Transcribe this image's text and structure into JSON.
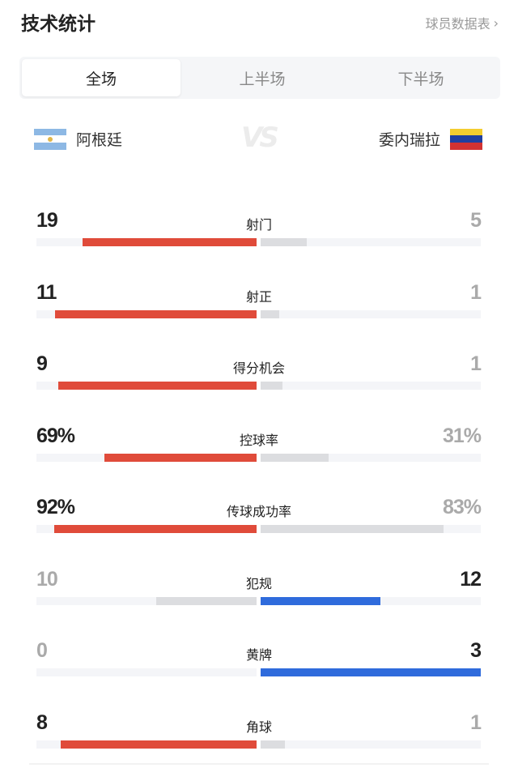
{
  "header": {
    "title": "技术统计",
    "player_link": "球员数据表",
    "chevron_icon": "chevron-right-icon"
  },
  "tabs": [
    {
      "label": "全场",
      "active": true
    },
    {
      "label": "上半场",
      "active": false
    },
    {
      "label": "下半场",
      "active": false
    }
  ],
  "teams": {
    "home": {
      "name": "阿根廷",
      "flag": "argentina-flag",
      "color": "#e04b3a"
    },
    "away": {
      "name": "委内瑞拉",
      "flag": "venezuela-flag",
      "color": "#2f6bdc"
    },
    "vs": "VS"
  },
  "colors": {
    "home_bar": "#e04b3a",
    "away_bar": "#2f6bdc",
    "lose_bar": "#dcdde0",
    "track": "#f4f5f8"
  },
  "stats": [
    {
      "label": "射门",
      "home": "19",
      "away": "5",
      "home_fill": 0.79,
      "away_fill": 0.21,
      "winner": "home"
    },
    {
      "label": "射正",
      "home": "11",
      "away": "1",
      "home_fill": 0.917,
      "away_fill": 0.083,
      "winner": "home"
    },
    {
      "label": "得分机会",
      "home": "9",
      "away": "1",
      "home_fill": 0.9,
      "away_fill": 0.1,
      "winner": "home"
    },
    {
      "label": "控球率",
      "home": "69%",
      "away": "31%",
      "home_fill": 0.69,
      "away_fill": 0.31,
      "winner": "home"
    },
    {
      "label": "传球成功率",
      "home": "92%",
      "away": "83%",
      "home_fill": 0.92,
      "away_fill": 0.83,
      "winner": "home"
    },
    {
      "label": "犯规",
      "home": "10",
      "away": "12",
      "home_fill": 0.455,
      "away_fill": 0.545,
      "winner": "away"
    },
    {
      "label": "黄牌",
      "home": "0",
      "away": "3",
      "home_fill": 0,
      "away_fill": 1,
      "winner": "away"
    },
    {
      "label": "角球",
      "home": "8",
      "away": "1",
      "home_fill": 0.889,
      "away_fill": 0.111,
      "winner": "home"
    }
  ]
}
